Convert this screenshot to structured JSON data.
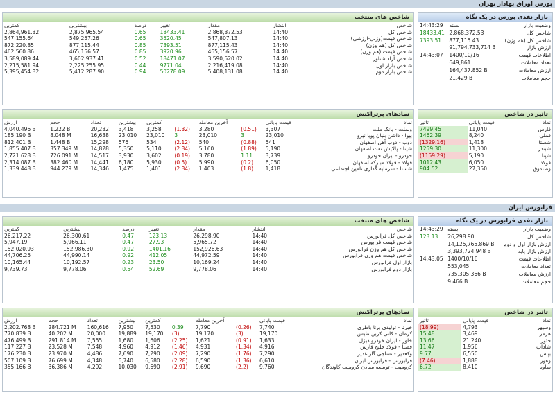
{
  "tse": {
    "section_title": "بورس اوراق بهادار تهران",
    "overview": {
      "title": "بازار نقدی بورس در یک نگاه",
      "rows": [
        {
          "label": "وضعیت بازار",
          "value": "بسته",
          "extra": "14:43:29"
        },
        {
          "label": "شاخص کل",
          "value": "2,868,372.53",
          "extra": "18433.41",
          "cls": "pos"
        },
        {
          "label": "شاخص کل (هم وزن)",
          "value": "877,115.43",
          "extra": "7393.51",
          "cls": "pos"
        },
        {
          "label": "ارزش بازار",
          "value": "91,794,733,714 B",
          "extra": ""
        },
        {
          "label": "اطلاعات قیمت",
          "value": "1400/10/16",
          "extra": "14:43:07"
        },
        {
          "label": "تعداد معاملات",
          "value": "649,861",
          "extra": ""
        },
        {
          "label": "ارزش معاملات",
          "value": "164,437.852 B",
          "extra": ""
        },
        {
          "label": "حجم معاملات",
          "value": "21.429 B",
          "extra": ""
        }
      ]
    },
    "indices": {
      "title": "شاخص های منتخب",
      "headers": [
        "شاخص",
        "انتشار",
        "مقدار",
        "تغییر",
        "درصد",
        "بیشترین",
        "کمترین"
      ],
      "rows": [
        [
          "شاخص کل",
          "14:40",
          "2,868,372.53",
          "18433.41",
          "0.65",
          "2,875,965.54",
          "2,864,961.32"
        ],
        [
          "شاخص قیمت(وزنی-ارزشی)",
          "14:40",
          "547,807.13",
          "3520.45",
          "0.65",
          "549,257.26",
          "547,155.64"
        ],
        [
          "شاخص کل (هم وزن)",
          "14:40",
          "877,115.43",
          "7393.51",
          "0.85",
          "877,115.44",
          "872,220.85"
        ],
        [
          "شاخص قیمت (هم وزن)",
          "14:40",
          "465,156.57",
          "3920.96",
          "0.85",
          "465,156.57",
          "462,560.86"
        ],
        [
          "شاخص آزاد شناور",
          "14:40",
          "3,590,520.02",
          "18471.07",
          "0.52",
          "3,602,937.41",
          "3,589,089.44"
        ],
        [
          "شاخص بازار اول",
          "14:40",
          "2,216,419.08",
          "9771.04",
          "0.44",
          "2,225,255.95",
          "2,215,581.94"
        ],
        [
          "شاخص بازار دوم",
          "14:40",
          "5,408,131.08",
          "50278.09",
          "0.94",
          "5,412,287.90",
          "5,395,454.82"
        ]
      ]
    },
    "impact": {
      "title": "تاثیر در شاخص",
      "headers": [
        "نماد",
        "قیمت پایانی",
        "تاثیر"
      ],
      "rows": [
        [
          "فارس",
          "11,040",
          "7499.45",
          "pos"
        ],
        [
          "فملی",
          "8,240",
          "1462.39",
          "pos"
        ],
        [
          "شستا",
          "1,418",
          "(1329.16)",
          "neg"
        ],
        [
          "شبندر",
          "11,300",
          "1259.30",
          "pos"
        ],
        [
          "شپنا",
          "5,190",
          "(1159.29)",
          "neg"
        ],
        [
          "فولاد",
          "6,050",
          "1012.43",
          "pos"
        ],
        [
          "وصندوق",
          "27,350",
          "904.52",
          "pos"
        ]
      ]
    },
    "top": {
      "title": "نمادهای پرتراکنش",
      "headers": [
        "نماد",
        "قیمت پایانی",
        "آخرین معامله",
        "کمترین",
        "بیشترین",
        "تعداد",
        "حجم",
        "ارزش"
      ],
      "rows": [
        [
          "وبملت - بانک ملت",
          "3,307",
          "(0.51)",
          "3,280",
          "(1.32)",
          "3,258",
          "3,418",
          "20,232",
          "1.222 B",
          "4,040.496 B"
        ],
        [
          "بیوا - داشن بنیان پویا نیرو",
          "23,010",
          "3",
          "23,010",
          "3",
          "23,010",
          "23,010",
          "16,638",
          "8.048 M",
          "185.190 B"
        ],
        [
          "ذوب - ذوب آهن اصفهان",
          "541",
          "(0.88)",
          "540",
          "(2.12)",
          "534",
          "576",
          "15,298",
          "1.448 B",
          "812.401 B"
        ],
        [
          "شپنا - پالایش نفت اصفهان",
          "5,190",
          "(1.89)",
          "5,160",
          "(2.84)",
          "5,110",
          "5,350",
          "14,828",
          "357.349 M",
          "1,855.407 B"
        ],
        [
          "خودرو - ایران خودرو",
          "3,739",
          "1.11",
          "3,780",
          "(0.19)",
          "3,602",
          "3,930",
          "14,517",
          "726.091 M",
          "2,721.628 B"
        ],
        [
          "فولاد - فولاد مبارکه اصفهان",
          "6,050",
          "(0.2)",
          "5,990",
          "(0.5)",
          "5,930",
          "6,180",
          "14,441",
          "382.460 M",
          "2,314.087 B"
        ],
        [
          "شستا - سرمایه گذاری تامین اجتماعی",
          "1,418",
          "(1.8)",
          "1,403",
          "(2.84)",
          "1,401",
          "1,475",
          "14,346",
          "944.279 M",
          "1,339.448 B"
        ]
      ]
    }
  },
  "ifb": {
    "section_title": "فرابورس ایران",
    "overview": {
      "title": "بازار نقدی فرابورس در یک نگاه",
      "rows": [
        {
          "label": "وضعیت بازار",
          "value": "بسته",
          "extra": "14:43:29"
        },
        {
          "label": "شاخص کل",
          "value": "26,298.90",
          "extra": "123.13",
          "cls": "pos"
        },
        {
          "label": "ارزش بازار اول و دوم",
          "value": "14,125,765.869 B",
          "extra": ""
        },
        {
          "label": "ارزش بازار پایه",
          "value": "3,393,724.948 B",
          "extra": ""
        },
        {
          "label": "اطلاعات قیمت",
          "value": "1400/10/16",
          "extra": "14:43:05"
        },
        {
          "label": "تعداد معاملات",
          "value": "553,045",
          "extra": ""
        },
        {
          "label": "ارزش معاملات",
          "value": "735,305.366 B",
          "extra": ""
        },
        {
          "label": "حجم معاملات",
          "value": "9.466 B",
          "extra": ""
        }
      ]
    },
    "indices": {
      "title": "شاخص های منتخب",
      "headers": [
        "شاخص",
        "انتشار",
        "مقدار",
        "تغییر",
        "درصد",
        "بیشترین",
        "کمترین"
      ],
      "rows": [
        [
          "شاخص کل فرابورس",
          "14:40",
          "26,298.90",
          "123.13",
          "0.47",
          "26,300.61",
          "26,217.22"
        ],
        [
          "شاخص قیمت فرابورس",
          "14:40",
          "5,965.72",
          "27.93",
          "0.47",
          "5,966.11",
          "5,947.19"
        ],
        [
          "شاخص کل هم وزن فرابورس",
          "14:40",
          "152,926.63",
          "1401.16",
          "0.92",
          "152,986.30",
          "152,020.93"
        ],
        [
          "شاخص قیمت هم وزن فرابورس",
          "14:40",
          "44,972.59",
          "412.05",
          "0.92",
          "44,990.14",
          "44,706.25"
        ],
        [
          "بازار اول فرابورس",
          "14:40",
          "10,169.24",
          "23.50",
          "0.23",
          "10,192.57",
          "10,165.44"
        ],
        [
          "بازار دوم فرابورس",
          "14:40",
          "9,778.06",
          "52.69",
          "0.54",
          "9,778.06",
          "9,739.73"
        ]
      ]
    },
    "impact": {
      "title": "تاثیر در شاخص",
      "headers": [
        "نماد",
        "قیمت پایانی",
        "تاثیر"
      ],
      "rows": [
        [
          "وسپهر",
          "4,793",
          "(18.99)",
          "neg"
        ],
        [
          "هرمز",
          "3,469",
          "15.48",
          "pos"
        ],
        [
          "ختور",
          "21,240",
          "13.66",
          "pos"
        ],
        [
          "شاداب",
          "1,956",
          "11.47",
          "pos"
        ],
        [
          "بپاس",
          "6,550",
          "9.77",
          "pos"
        ],
        [
          "وهور",
          "1,888",
          "(7.46)",
          "neg"
        ],
        [
          "ساوه",
          "8,410",
          "6.72",
          "pos"
        ]
      ]
    },
    "top": {
      "title": "نمادهای پرتراکنش",
      "headers": [
        "نماد",
        "قیمت پایانی",
        "آخرین معامله",
        "کمترین",
        "بیشترین",
        "تعداد",
        "حجم",
        "ارزش"
      ],
      "rows": [
        [
          "خبرتا - تولیدی برنا باطری",
          "7,740",
          "(0.26)",
          "7,790",
          "0.39",
          "7,530",
          "7,950",
          "160,616",
          "284.721 M",
          "2,202.768 B"
        ],
        [
          "کرمان - کانی کربن طبس",
          "19,170",
          "(3)",
          "19,170",
          "(3)",
          "19,170",
          "19,889",
          "20,000",
          "40.202 M",
          "770.839 B"
        ],
        [
          "خاور - ایران خودرو دیزل",
          "1,633",
          "(0.91)",
          "1,621",
          "(2.25)",
          "1,606",
          "1,680",
          "7,555",
          "291.814 M",
          "476.499 B"
        ],
        [
          "فصبا - فولاد خلیج فارس",
          "4,916",
          "(1.34)",
          "4,931",
          "(1.46)",
          "4,912",
          "4,960",
          "7,548",
          "23.528 M",
          "117.227 B"
        ],
        [
          "وکغدیر - نساجی گاز غدیر",
          "7,290",
          "(1.76)",
          "7,290",
          "(2.09)",
          "7,290",
          "7,690",
          "4,486",
          "23.970 M",
          "176.230 B"
        ],
        [
          "فرابورس - فرابورس ایران",
          "6,610",
          "(1.36)",
          "6,590",
          "(2.28)",
          "6,580",
          "6,740",
          "4,348",
          "76.699 M",
          "507.109 B"
        ],
        [
          "کرومیت - توسعه معادن کرومیت کاوندگان",
          "9,760",
          "(2.2)",
          "9,690",
          "(2.91)",
          "9,690",
          "10,030",
          "4,292",
          "36.386 M",
          "355.166 B"
        ]
      ]
    }
  }
}
